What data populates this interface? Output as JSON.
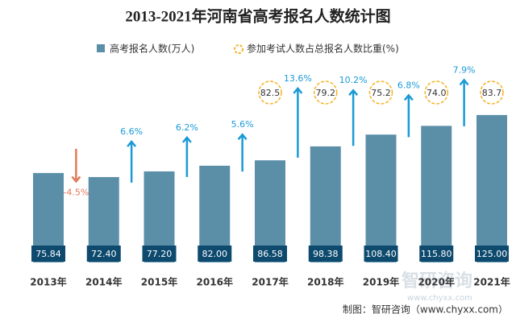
{
  "chart_data": {
    "type": "bar",
    "title": "2013-2021年河南省高考报名人数统计图",
    "categories": [
      "2013年",
      "2014年",
      "2015年",
      "2016年",
      "2017年",
      "2018年",
      "2019年",
      "2020年",
      "2021年"
    ],
    "series": [
      {
        "name": "高考报名人数(万人)",
        "color": "#5b8fa8",
        "values": [
          75.84,
          72.4,
          77.2,
          82.0,
          86.58,
          98.38,
          108.4,
          115.8,
          125.0
        ],
        "value_labels": [
          "75.84",
          "72.40",
          "77.20",
          "82.00",
          "86.58",
          "98.38",
          "108.40",
          "115.80",
          "125.00"
        ]
      },
      {
        "name": "参加考试人数占总报名人数比重(%)",
        "color": "#f5b324",
        "values": [
          null,
          null,
          null,
          null,
          82.5,
          79.2,
          75.2,
          74.0,
          83.7
        ],
        "value_labels": [
          null,
          null,
          null,
          null,
          "82.5",
          "79.2",
          "75.2",
          "74.0",
          "83.7"
        ]
      }
    ],
    "growth": {
      "values": [
        null,
        -4.5,
        6.6,
        6.2,
        5.6,
        13.6,
        10.2,
        6.8,
        7.9
      ],
      "value_labels": [
        null,
        "-4.5%",
        "6.6%",
        "6.2%",
        "5.6%",
        "13.6%",
        "10.2%",
        "6.8%",
        "7.9%"
      ],
      "up_color": "#1a9ad6",
      "down_color": "#e07b5a"
    },
    "watermark": "智研咨询",
    "watermark_url": "www.chyxx.com",
    "source": "制图：智研咨询（www.chyxx.com）"
  }
}
